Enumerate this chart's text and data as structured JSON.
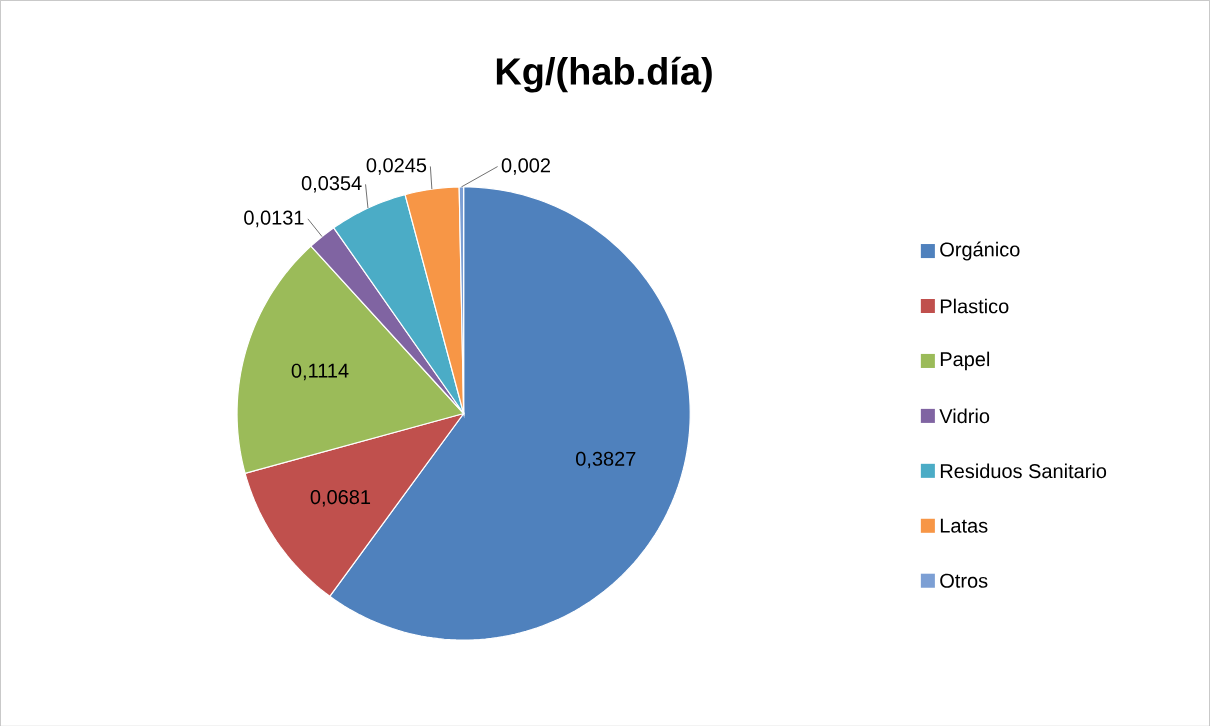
{
  "chart_data": {
    "type": "pie",
    "title": "Kg/(hab.día)",
    "categories": [
      "Orgánico",
      "Plastico",
      "Papel",
      "Vidrio",
      "Residuos Sanitario",
      "Latas",
      "Otros"
    ],
    "values": [
      0.3827,
      0.0681,
      0.1114,
      0.0131,
      0.0354,
      0.0245,
      0.002
    ],
    "value_labels": [
      "0,3827",
      "0,0681",
      "0,1114",
      "0,0131",
      "0,0354",
      "0,0245",
      "0,002"
    ],
    "colors": [
      "#4f81bd",
      "#c0504d",
      "#9bbb59",
      "#8064a2",
      "#4bacc6",
      "#f79646",
      "#7c9fd4"
    ],
    "legend": "right"
  }
}
